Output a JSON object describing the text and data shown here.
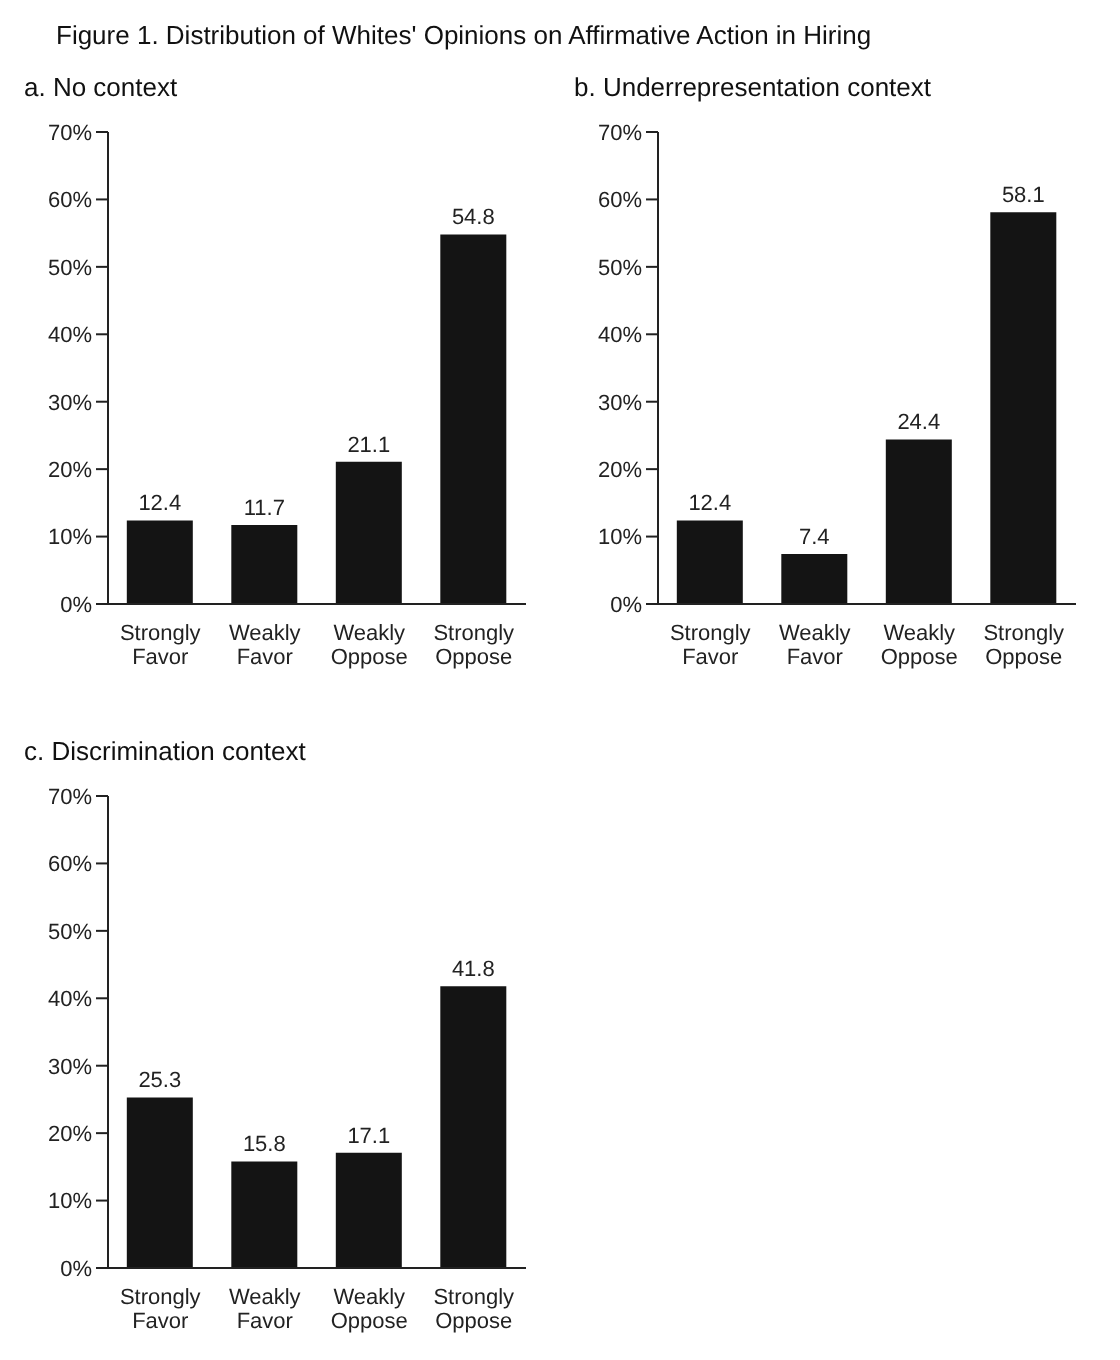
{
  "chart_data": [
    {
      "type": "bar",
      "title": "Figure 1.  Distribution of Whites' Opinions on Affirmative Action in Hiring",
      "subtitle": "a. No context",
      "categories": [
        "Strongly Favor",
        "Weakly Favor",
        "Weakly Oppose",
        "Strongly Oppose"
      ],
      "values": [
        12.4,
        11.7,
        21.1,
        54.8
      ],
      "color": "#141414",
      "ylim": [
        0,
        70
      ],
      "yticks": [
        {
          "value": 0,
          "label": "0%"
        },
        {
          "value": 10,
          "label": "10%"
        },
        {
          "value": 20,
          "label": "20%"
        },
        {
          "value": 30,
          "label": "30%"
        },
        {
          "value": 40,
          "label": "40%"
        },
        {
          "value": 50,
          "label": "50%"
        },
        {
          "value": 60,
          "label": "60%"
        },
        {
          "value": 70,
          "label": "70%"
        }
      ],
      "data_labels": true,
      "grid": false
    },
    {
      "type": "bar",
      "title": "b. Underrepresentation  context",
      "categories": [
        "Strongly Favor",
        "Weakly Favor",
        "Weakly Oppose",
        "Strongly Oppose"
      ],
      "values": [
        12.4,
        7.4,
        24.4,
        58.1
      ],
      "color": "#141414",
      "ylim": [
        0,
        70
      ],
      "yticks": [
        {
          "value": 0,
          "label": "0%"
        },
        {
          "value": 10,
          "label": "10%"
        },
        {
          "value": 20,
          "label": "20%"
        },
        {
          "value": 30,
          "label": "30%"
        },
        {
          "value": 40,
          "label": "40%"
        },
        {
          "value": 50,
          "label": "50%"
        },
        {
          "value": 60,
          "label": "60%"
        },
        {
          "value": 70,
          "label": "70%"
        }
      ],
      "data_labels": true,
      "grid": false
    },
    {
      "type": "bar",
      "title": "c. Discrimination context",
      "categories": [
        "Strongly Favor",
        "Weakly Favor",
        "Weakly Oppose",
        "Strongly Oppose"
      ],
      "values": [
        25.3,
        15.8,
        17.1,
        41.8
      ],
      "color": "#141414",
      "ylim": [
        0,
        70
      ],
      "yticks": [
        {
          "value": 0,
          "label": "0%"
        },
        {
          "value": 10,
          "label": "10%"
        },
        {
          "value": 20,
          "label": "20%"
        },
        {
          "value": 30,
          "label": "30%"
        },
        {
          "value": 40,
          "label": "40%"
        },
        {
          "value": 50,
          "label": "50%"
        },
        {
          "value": 60,
          "label": "60%"
        },
        {
          "value": 70,
          "label": "70%"
        }
      ],
      "data_labels": true,
      "grid": false
    }
  ]
}
